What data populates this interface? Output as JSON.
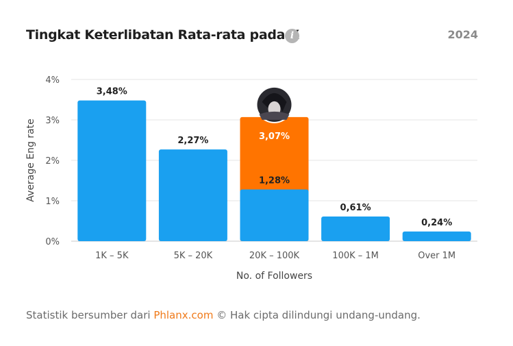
{
  "header": {
    "title": "Tingkat Keterlibatan Rata-rata pada X",
    "info_icon": "info-icon",
    "info_glyph": "i",
    "year": "2024"
  },
  "chart_data": {
    "type": "bar",
    "title": "Tingkat Keterlibatan Rata-rata pada X",
    "xlabel": "No. of Followers",
    "ylabel": "Average Eng rate",
    "ylim": [
      0,
      4
    ],
    "yticks": [
      "0%",
      "1%",
      "2%",
      "3%",
      "4%"
    ],
    "grid": true,
    "categories": [
      "1K – 5K",
      "5K – 20K",
      "20K – 100K",
      "100K – 1M",
      "Over 1M"
    ],
    "values": [
      3.48,
      2.27,
      1.28,
      0.61,
      0.24
    ],
    "value_labels": [
      "3,48%",
      "2,27%",
      "1,28%",
      "0,61%",
      "0,24%"
    ],
    "highlight": {
      "category": "20K – 100K",
      "value": 3.07,
      "label": "3,07%",
      "color": "#ff7400",
      "marker": "avatar"
    },
    "bar_color": "#1aa0f0"
  },
  "footer": {
    "prefix": "Statistik bersumber dari ",
    "link": "Phlanx.com",
    "suffix": " © Hak cipta dilindungi undang-undang."
  }
}
